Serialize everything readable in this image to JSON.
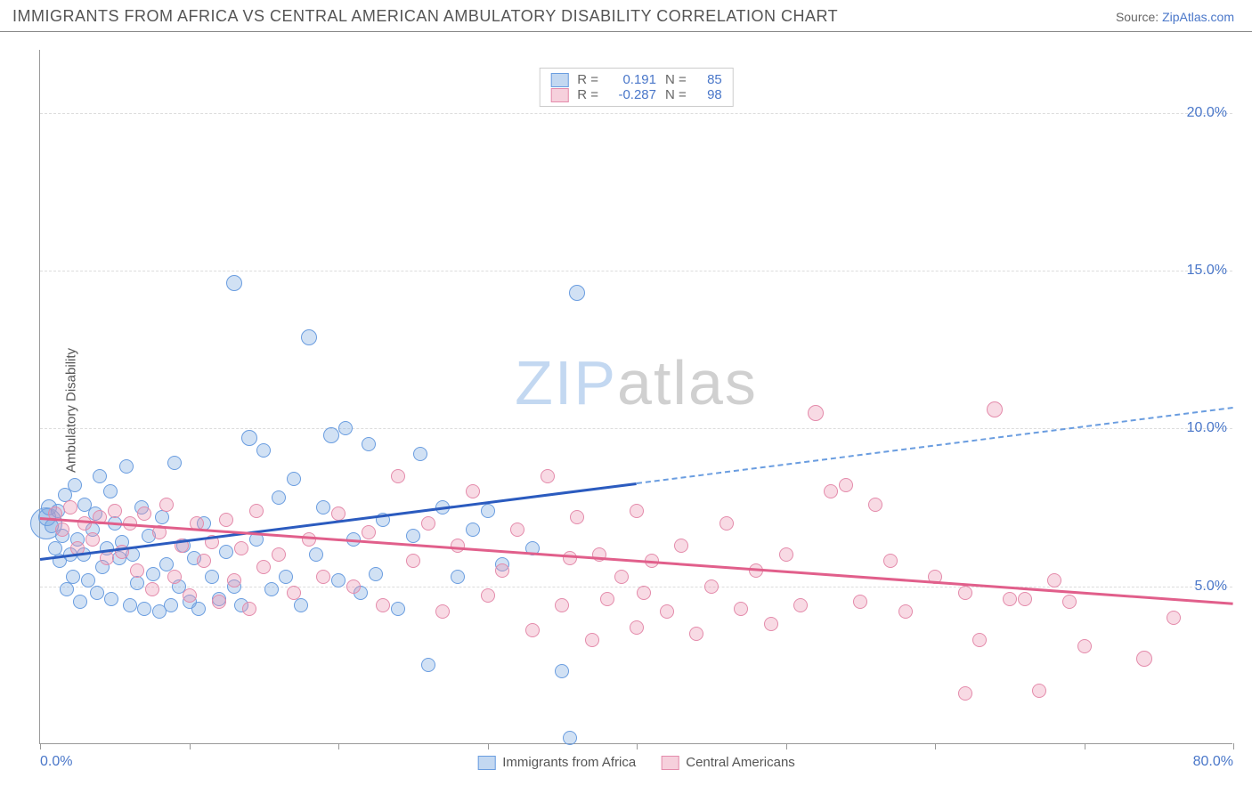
{
  "header": {
    "title": "IMMIGRANTS FROM AFRICA VS CENTRAL AMERICAN AMBULATORY DISABILITY CORRELATION CHART",
    "source_prefix": "Source: ",
    "source_link": "ZipAtlas.com"
  },
  "ylabel": "Ambulatory Disability",
  "watermark": {
    "part1": "ZIP",
    "part2": "atlas"
  },
  "chart": {
    "type": "scatter",
    "background_color": "#ffffff",
    "grid_color": "#dddddd",
    "xlim": [
      0,
      80
    ],
    "ylim": [
      0,
      22
    ],
    "x_ticks": [
      0,
      10,
      20,
      30,
      40,
      50,
      60,
      70,
      80
    ],
    "x_tick_labels_shown": {
      "0": "0.0%",
      "80": "80.0%"
    },
    "y_ticks": [
      5,
      10,
      15,
      20
    ],
    "y_tick_labels": [
      "5.0%",
      "10.0%",
      "15.0%",
      "20.0%"
    ],
    "tick_label_color": "#4a77c9",
    "axis_label_color": "#555555",
    "series": [
      {
        "name": "Immigrants from Africa",
        "color_fill": "rgba(122,168,224,0.35)",
        "color_stroke": "#6a9de0",
        "marker_radius": 7,
        "R": 0.191,
        "N": 85,
        "trend": {
          "x1": 0,
          "y1": 5.9,
          "x2": 40,
          "y2": 8.3,
          "color": "#2b5bbf",
          "width": 2.5,
          "dash_extend_to_x": 80,
          "dash_y2": 10.7
        },
        "points": [
          [
            0.4,
            7.0,
            18
          ],
          [
            0.5,
            7.2,
            10
          ],
          [
            0.6,
            7.5,
            9
          ],
          [
            0.8,
            6.9,
            8
          ],
          [
            1.0,
            6.2,
            8
          ],
          [
            1.2,
            7.4,
            8
          ],
          [
            1.3,
            5.8,
            8
          ],
          [
            1.5,
            6.6,
            8
          ],
          [
            1.7,
            7.9,
            8
          ],
          [
            1.8,
            4.9,
            8
          ],
          [
            2.0,
            6.0,
            8
          ],
          [
            2.2,
            5.3,
            8
          ],
          [
            2.3,
            8.2,
            8
          ],
          [
            2.5,
            6.5,
            8
          ],
          [
            2.7,
            4.5,
            8
          ],
          [
            2.9,
            6.0,
            8
          ],
          [
            3.0,
            7.6,
            8
          ],
          [
            3.2,
            5.2,
            8
          ],
          [
            3.5,
            6.8,
            8
          ],
          [
            3.7,
            7.3,
            8
          ],
          [
            3.8,
            4.8,
            8
          ],
          [
            4.0,
            8.5,
            8
          ],
          [
            4.2,
            5.6,
            8
          ],
          [
            4.5,
            6.2,
            8
          ],
          [
            4.7,
            8.0,
            8
          ],
          [
            4.8,
            4.6,
            8
          ],
          [
            5.0,
            7.0,
            8
          ],
          [
            5.3,
            5.9,
            8
          ],
          [
            5.5,
            6.4,
            8
          ],
          [
            5.8,
            8.8,
            8
          ],
          [
            6.0,
            4.4,
            8
          ],
          [
            6.2,
            6.0,
            8
          ],
          [
            6.5,
            5.1,
            8
          ],
          [
            6.8,
            7.5,
            8
          ],
          [
            7.0,
            4.3,
            8
          ],
          [
            7.3,
            6.6,
            8
          ],
          [
            7.6,
            5.4,
            8
          ],
          [
            8.0,
            4.2,
            8
          ],
          [
            8.2,
            7.2,
            8
          ],
          [
            8.5,
            5.7,
            8
          ],
          [
            8.8,
            4.4,
            8
          ],
          [
            9.0,
            8.9,
            8
          ],
          [
            9.3,
            5.0,
            8
          ],
          [
            9.6,
            6.3,
            8
          ],
          [
            10.0,
            4.5,
            8
          ],
          [
            10.3,
            5.9,
            8
          ],
          [
            10.6,
            4.3,
            8
          ],
          [
            11.0,
            7.0,
            8
          ],
          [
            11.5,
            5.3,
            8
          ],
          [
            12.0,
            4.6,
            8
          ],
          [
            12.5,
            6.1,
            8
          ],
          [
            13.0,
            5.0,
            8
          ],
          [
            13.0,
            14.6,
            9
          ],
          [
            13.5,
            4.4,
            8
          ],
          [
            14.0,
            9.7,
            9
          ],
          [
            14.5,
            6.5,
            8
          ],
          [
            15.0,
            9.3,
            8
          ],
          [
            15.5,
            4.9,
            8
          ],
          [
            16.0,
            7.8,
            8
          ],
          [
            16.5,
            5.3,
            8
          ],
          [
            17.0,
            8.4,
            8
          ],
          [
            17.5,
            4.4,
            8
          ],
          [
            18.0,
            12.9,
            9
          ],
          [
            18.5,
            6.0,
            8
          ],
          [
            19.0,
            7.5,
            8
          ],
          [
            19.5,
            9.8,
            9
          ],
          [
            20.0,
            5.2,
            8
          ],
          [
            20.5,
            10.0,
            8
          ],
          [
            21.0,
            6.5,
            8
          ],
          [
            21.5,
            4.8,
            8
          ],
          [
            22.0,
            9.5,
            8
          ],
          [
            22.5,
            5.4,
            8
          ],
          [
            23.0,
            7.1,
            8
          ],
          [
            24.0,
            4.3,
            8
          ],
          [
            25.0,
            6.6,
            8
          ],
          [
            25.5,
            9.2,
            8
          ],
          [
            26.0,
            2.5,
            8
          ],
          [
            27.0,
            7.5,
            8
          ],
          [
            28.0,
            5.3,
            8
          ],
          [
            29.0,
            6.8,
            8
          ],
          [
            30.0,
            7.4,
            8
          ],
          [
            31.0,
            5.7,
            8
          ],
          [
            33.0,
            6.2,
            8
          ],
          [
            35.0,
            2.3,
            8
          ],
          [
            36.0,
            14.3,
            9
          ],
          [
            35.5,
            0.2,
            8
          ]
        ]
      },
      {
        "name": "Central Americans",
        "color_fill": "rgba(236,150,178,0.35)",
        "color_stroke": "#e48bab",
        "marker_radius": 7,
        "R": -0.287,
        "N": 98,
        "trend": {
          "x1": 0,
          "y1": 7.2,
          "x2": 80,
          "y2": 4.5,
          "color": "#e15f8b",
          "width": 2.5
        },
        "points": [
          [
            1.0,
            7.3,
            8
          ],
          [
            1.5,
            6.8,
            8
          ],
          [
            2.0,
            7.5,
            8
          ],
          [
            2.5,
            6.2,
            8
          ],
          [
            3.0,
            7.0,
            8
          ],
          [
            3.5,
            6.5,
            8
          ],
          [
            4.0,
            7.2,
            8
          ],
          [
            4.5,
            5.9,
            8
          ],
          [
            5.0,
            7.4,
            8
          ],
          [
            5.5,
            6.1,
            8
          ],
          [
            6.0,
            7.0,
            8
          ],
          [
            6.5,
            5.5,
            8
          ],
          [
            7.0,
            7.3,
            8
          ],
          [
            7.5,
            4.9,
            8
          ],
          [
            8.0,
            6.7,
            8
          ],
          [
            8.5,
            7.6,
            8
          ],
          [
            9.0,
            5.3,
            8
          ],
          [
            9.5,
            6.3,
            8
          ],
          [
            10.0,
            4.7,
            8
          ],
          [
            10.5,
            7.0,
            8
          ],
          [
            11.0,
            5.8,
            8
          ],
          [
            11.5,
            6.4,
            8
          ],
          [
            12.0,
            4.5,
            8
          ],
          [
            12.5,
            7.1,
            8
          ],
          [
            13.0,
            5.2,
            8
          ],
          [
            13.5,
            6.2,
            8
          ],
          [
            14.0,
            4.3,
            8
          ],
          [
            14.5,
            7.4,
            8
          ],
          [
            15.0,
            5.6,
            8
          ],
          [
            16.0,
            6.0,
            8
          ],
          [
            17.0,
            4.8,
            8
          ],
          [
            18.0,
            6.5,
            8
          ],
          [
            19.0,
            5.3,
            8
          ],
          [
            20.0,
            7.3,
            8
          ],
          [
            21.0,
            5.0,
            8
          ],
          [
            22.0,
            6.7,
            8
          ],
          [
            23.0,
            4.4,
            8
          ],
          [
            24.0,
            8.5,
            8
          ],
          [
            25.0,
            5.8,
            8
          ],
          [
            26.0,
            7.0,
            8
          ],
          [
            27.0,
            4.2,
            8
          ],
          [
            28.0,
            6.3,
            8
          ],
          [
            29.0,
            8.0,
            8
          ],
          [
            30.0,
            4.7,
            8
          ],
          [
            31.0,
            5.5,
            8
          ],
          [
            32.0,
            6.8,
            8
          ],
          [
            33.0,
            3.6,
            8
          ],
          [
            34.0,
            8.5,
            8
          ],
          [
            35.0,
            4.4,
            8
          ],
          [
            35.5,
            5.9,
            8
          ],
          [
            36.0,
            7.2,
            8
          ],
          [
            37.0,
            3.3,
            8
          ],
          [
            37.5,
            6.0,
            8
          ],
          [
            38.0,
            4.6,
            8
          ],
          [
            39.0,
            5.3,
            8
          ],
          [
            40.0,
            7.4,
            8
          ],
          [
            40.0,
            3.7,
            8
          ],
          [
            40.5,
            4.8,
            8
          ],
          [
            41.0,
            5.8,
            8
          ],
          [
            42.0,
            4.2,
            8
          ],
          [
            43.0,
            6.3,
            8
          ],
          [
            44.0,
            3.5,
            8
          ],
          [
            45.0,
            5.0,
            8
          ],
          [
            46.0,
            7.0,
            8
          ],
          [
            47.0,
            4.3,
            8
          ],
          [
            48.0,
            5.5,
            8
          ],
          [
            49.0,
            3.8,
            8
          ],
          [
            50.0,
            6.0,
            8
          ],
          [
            51.0,
            4.4,
            8
          ],
          [
            52.0,
            10.5,
            9
          ],
          [
            53.0,
            8.0,
            8
          ],
          [
            54.0,
            8.2,
            8
          ],
          [
            55.0,
            4.5,
            8
          ],
          [
            56.0,
            7.6,
            8
          ],
          [
            57.0,
            5.8,
            8
          ],
          [
            58.0,
            4.2,
            8
          ],
          [
            60.0,
            5.3,
            8
          ],
          [
            62.0,
            4.8,
            8
          ],
          [
            62.0,
            1.6,
            8
          ],
          [
            63.0,
            3.3,
            8
          ],
          [
            64.0,
            10.6,
            9
          ],
          [
            65.0,
            4.6,
            8
          ],
          [
            66.0,
            4.6,
            8
          ],
          [
            67.0,
            1.7,
            8
          ],
          [
            68.0,
            5.2,
            8
          ],
          [
            69.0,
            4.5,
            8
          ],
          [
            70.0,
            3.1,
            8
          ],
          [
            74.0,
            2.7,
            9
          ],
          [
            76.0,
            4.0,
            8
          ]
        ]
      }
    ],
    "legend_top": {
      "rows": [
        {
          "swatch": "blue",
          "R_label": "R =",
          "R_val": "0.191",
          "N_label": "N =",
          "N_val": "85"
        },
        {
          "swatch": "pink",
          "R_label": "R =",
          "R_val": "-0.287",
          "N_label": "N =",
          "N_val": "98"
        }
      ]
    },
    "legend_bottom": [
      {
        "swatch": "blue",
        "label": "Immigrants from Africa"
      },
      {
        "swatch": "pink",
        "label": "Central Americans"
      }
    ]
  }
}
